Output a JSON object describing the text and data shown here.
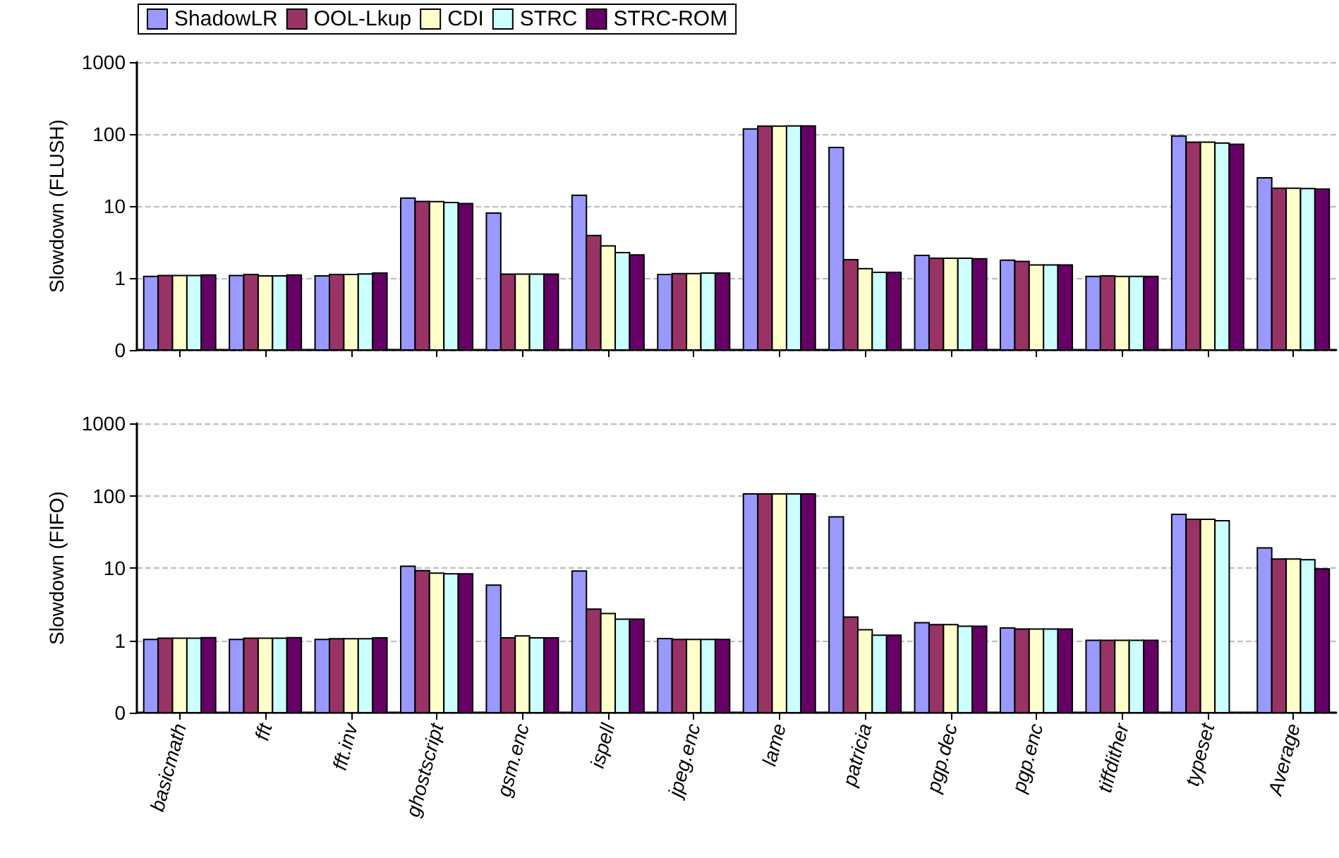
{
  "chart_data": [
    {
      "type": "bar",
      "ylabel": "Slowdown (FLUSH)",
      "log": true,
      "ylim": [
        0.1,
        1000
      ],
      "yticks": [
        {
          "value": 0.1,
          "label": "0"
        },
        1,
        10,
        100,
        1000
      ],
      "grid": "y",
      "legend": "top left",
      "tick_labels": "y",
      "categories": [
        null,
        null,
        null,
        null,
        null,
        null,
        null,
        null,
        null,
        null,
        null,
        null,
        null,
        null
      ],
      "series": [
        {
          "name": "ShadowLR",
          "color": "#9999ff",
          "values": [
            1.05,
            1.08,
            1.07,
            12.9,
            8.0,
            14.1,
            1.12,
            118,
            65,
            2.06,
            1.77,
            1.05,
            94,
            24.6
          ]
        },
        {
          "name": "OOL-Lkup",
          "color": "#993366",
          "values": [
            1.08,
            1.12,
            1.12,
            11.6,
            1.13,
            3.9,
            1.15,
            129,
            1.8,
            1.88,
            1.7,
            1.07,
            77,
            17.7
          ]
        },
        {
          "name": "CDI",
          "color": "#ffffcc",
          "values": [
            1.08,
            1.07,
            1.12,
            11.5,
            1.13,
            2.8,
            1.15,
            129,
            1.35,
            1.88,
            1.52,
            1.05,
            77,
            17.7
          ]
        },
        {
          "name": "STRC",
          "color": "#ccffff",
          "values": [
            1.08,
            1.07,
            1.14,
            11.2,
            1.13,
            2.25,
            1.17,
            130,
            1.2,
            1.88,
            1.52,
            1.05,
            75,
            17.5
          ]
        },
        {
          "name": "STRC-ROM",
          "color": "#660066",
          "values": [
            1.1,
            1.1,
            1.17,
            10.8,
            1.13,
            2.1,
            1.17,
            130,
            1.2,
            1.85,
            1.52,
            1.05,
            72,
            17.2
          ]
        }
      ]
    },
    {
      "type": "bar",
      "ylabel": "Slowdown (FIFO)",
      "log": true,
      "ylim": [
        0.1,
        1000
      ],
      "yticks": [
        {
          "value": 0.1,
          "label": "0"
        },
        1,
        10,
        100,
        1000
      ],
      "grid": "y",
      "legend": false,
      "categories": [
        "basicmath",
        "fft",
        "fft.inv",
        "ghostscript",
        "gsm.enc",
        "ispell",
        "jpeg.enc",
        "lame",
        "patricia",
        "pgp.dec",
        "pgp.enc",
        "tiffdither",
        "typeset",
        "Average"
      ],
      "series": [
        {
          "color": "#9999ff",
          "values": [
            1.03,
            1.03,
            1.03,
            10.6,
            5.8,
            9.1,
            1.06,
            106,
            51,
            1.75,
            1.48,
            1.0,
            55,
            19
          ]
        },
        {
          "color": "#993366",
          "values": [
            1.07,
            1.07,
            1.05,
            9.2,
            1.08,
            2.7,
            1.03,
            106,
            2.1,
            1.65,
            1.43,
            1.0,
            47,
            13.3
          ]
        },
        {
          "color": "#ffffcc",
          "values": [
            1.07,
            1.07,
            1.05,
            8.5,
            1.15,
            2.35,
            1.03,
            106,
            1.4,
            1.65,
            1.43,
            1.0,
            47,
            13.3
          ]
        },
        {
          "color": "#ccffff",
          "values": [
            1.07,
            1.07,
            1.05,
            8.3,
            1.08,
            1.96,
            1.03,
            106,
            1.18,
            1.57,
            1.43,
            1.0,
            45,
            13
          ]
        },
        {
          "color": "#660066",
          "values": [
            1.09,
            1.09,
            1.08,
            8.3,
            1.08,
            1.96,
            1.03,
            106,
            1.18,
            1.57,
            1.43,
            1.0,
            null,
            9.7
          ]
        }
      ]
    }
  ]
}
